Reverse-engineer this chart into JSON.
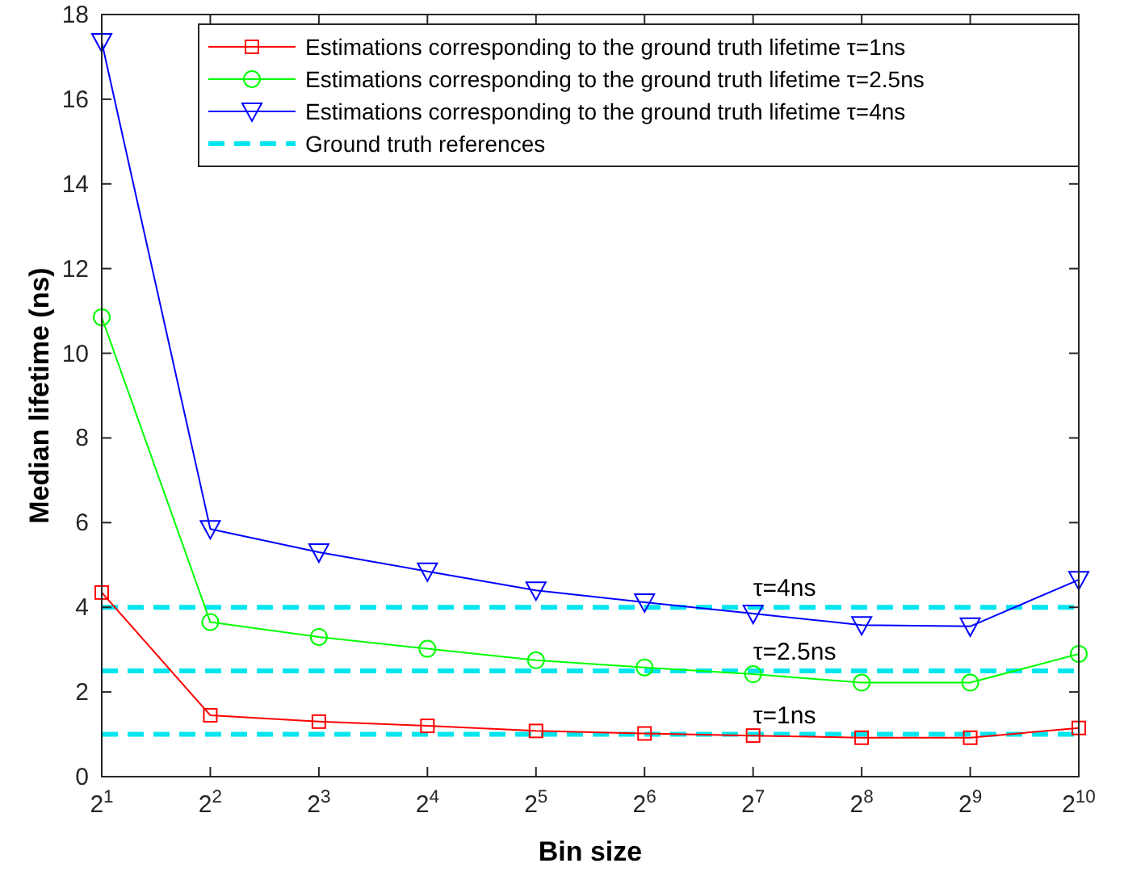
{
  "chart_data": {
    "type": "line",
    "xlabel": "Bin size",
    "ylabel": "Median lifetime (ns)",
    "log": "x",
    "x": [
      2,
      4,
      8,
      16,
      32,
      64,
      128,
      256,
      512,
      1024
    ],
    "xlim": [
      2,
      1024
    ],
    "xticks": [
      {
        "value": 2,
        "label": "2$^{1}$"
      },
      {
        "value": 4,
        "label": "2$^{2}$"
      },
      {
        "value": 8,
        "label": "2$^{3}$"
      },
      {
        "value": 16,
        "label": "2$^{4}$"
      },
      {
        "value": 32,
        "label": "2$^{5}$"
      },
      {
        "value": 64,
        "label": "2$^{6}$"
      },
      {
        "value": 128,
        "label": "2$^{7}$"
      },
      {
        "value": 256,
        "label": "2$^{8}$"
      },
      {
        "value": 512,
        "label": "2$^{9}$"
      },
      {
        "value": 1024,
        "label": "2$^{10}$"
      }
    ],
    "ylim": [
      0,
      18
    ],
    "yticks": [
      0,
      2,
      4,
      6,
      8,
      10,
      12,
      14,
      16,
      18
    ],
    "grid": false,
    "legend": "top right",
    "line_style": "solid",
    "series": [
      {
        "name": "Estimations corresponding to the ground truth lifetime τ=1ns",
        "color": "#ff0000",
        "marker": "square",
        "values": [
          4.35,
          1.45,
          1.3,
          1.2,
          1.08,
          1.02,
          0.97,
          0.92,
          0.92,
          1.15
        ]
      },
      {
        "name": "Estimations corresponding to the ground truth lifetime τ=2.5ns",
        "color": "#00ff00",
        "marker": "circle",
        "values": [
          10.85,
          3.65,
          3.3,
          3.02,
          2.75,
          2.58,
          2.42,
          2.22,
          2.22,
          2.9
        ]
      },
      {
        "name": "Estimations corresponding to the ground truth lifetime τ=4ns",
        "color": "#0000ff",
        "marker": "triangle",
        "values": [
          17.35,
          5.85,
          5.3,
          4.85,
          4.4,
          4.12,
          3.85,
          3.58,
          3.55,
          4.65
        ]
      }
    ],
    "ref_lines": [
      {
        "axis": "y",
        "value": 4,
        "label": "τ=4ns",
        "color": "#00e5ee",
        "line_style": "dashed"
      },
      {
        "axis": "y",
        "value": 2.5,
        "label": "τ=2.5ns",
        "color": "#00e5ee",
        "line_style": "dashed"
      },
      {
        "axis": "y",
        "value": 1,
        "label": "τ=1ns",
        "color": "#00e5ee",
        "line_style": "dashed"
      }
    ],
    "annotations": [
      "Ground truth references"
    ]
  }
}
